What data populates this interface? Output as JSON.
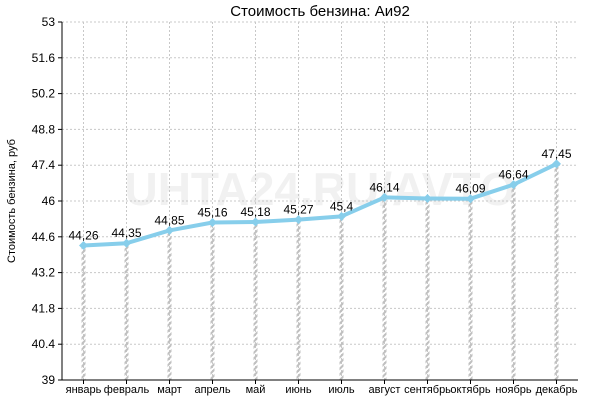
{
  "chart_data": {
    "type": "line",
    "title": "Стоимость бензина: Аи92",
    "ylabel": "Стоимость бензина, руб",
    "xlabel": "",
    "watermark": "UHTA24.RU/AVTO",
    "categories": [
      "январь",
      "февраль",
      "март",
      "апрель",
      "май",
      "июнь",
      "июль",
      "август",
      "сентябрь",
      "октябрь",
      "ноябрь",
      "декабрь"
    ],
    "series": [
      {
        "values": [
          44.26,
          44.35,
          44.85,
          45.16,
          45.18,
          45.27,
          45.4,
          46.14,
          46.1,
          46.09,
          46.64,
          47.45
        ],
        "labels": [
          "44,26",
          "44,35",
          "44,85",
          "45,16",
          "45,18",
          "45,27",
          "45,4",
          "46,14",
          "",
          "46,09",
          "46,64",
          "47,45"
        ]
      }
    ],
    "ylim": [
      39,
      53
    ],
    "yticks": [
      39,
      40.4,
      41.8,
      43.2,
      44.6,
      46,
      47.4,
      48.8,
      50.2,
      51.6,
      53
    ],
    "ytick_labels": [
      "39",
      "40.4",
      "41.8",
      "43.2",
      "44.6",
      "46",
      "47.4",
      "48.8",
      "50.2",
      "51.6",
      "53"
    ],
    "grid": true,
    "line_color": "#87ceeb",
    "drop_color": "#c0c0c0",
    "grid_color": "#c8c8c8"
  }
}
